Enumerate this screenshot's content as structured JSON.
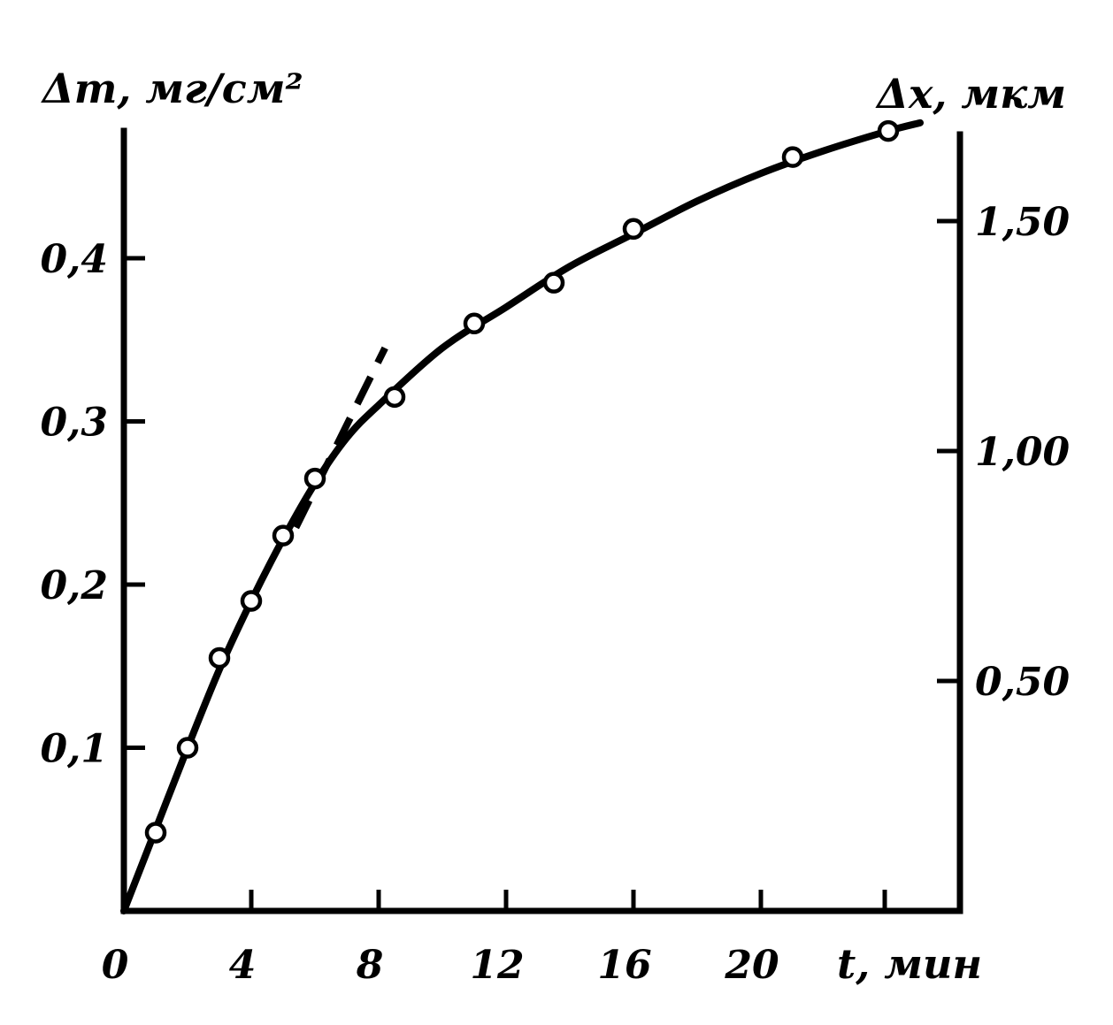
{
  "chart_data": {
    "type": "scatter",
    "xlabel": "t, мин",
    "ylabel_left": "Δm, мг/см²",
    "ylabel_right": "Δx, мкм",
    "xlim": [
      0,
      25
    ],
    "ylim_left": [
      0,
      0.48
    ],
    "ylim_right": [
      0,
      1.67
    ],
    "x_ticks": [
      0,
      4,
      8,
      12,
      16,
      20
    ],
    "x_tick_labels": [
      "0",
      "4",
      "8",
      "12",
      "16",
      "20"
    ],
    "y_left_ticks": [
      0.1,
      0.2,
      0.3,
      0.4
    ],
    "y_left_tick_labels": [
      "0,1",
      "0,2",
      "0,3",
      "0,4"
    ],
    "y_right_ticks": [
      0.5,
      1.0,
      1.5
    ],
    "y_right_tick_labels": [
      "0,50",
      "1,00",
      "1,50"
    ],
    "grid": false,
    "series": [
      {
        "x": [
          1,
          2,
          3,
          4,
          5,
          6,
          8.5,
          11,
          13.5,
          16,
          21,
          24
        ],
        "y": [
          0.048,
          0.1,
          0.155,
          0.19,
          0.23,
          0.265,
          0.315,
          0.36,
          0.385,
          0.418,
          0.462,
          0.478
        ]
      }
    ],
    "fitted_curve": {
      "x": [
        0,
        1,
        2,
        3,
        4,
        5,
        6,
        7,
        8,
        10,
        12,
        14,
        16,
        18,
        20,
        22,
        24,
        25
      ],
      "y": [
        0,
        0.05,
        0.1,
        0.148,
        0.19,
        0.228,
        0.262,
        0.29,
        0.31,
        0.345,
        0.37,
        0.395,
        0.415,
        0.435,
        0.452,
        0.466,
        0.478,
        0.483
      ]
    },
    "initial_slope_line": {
      "x": [
        5.4,
        8.2
      ],
      "y": [
        0.235,
        0.345
      ]
    }
  }
}
